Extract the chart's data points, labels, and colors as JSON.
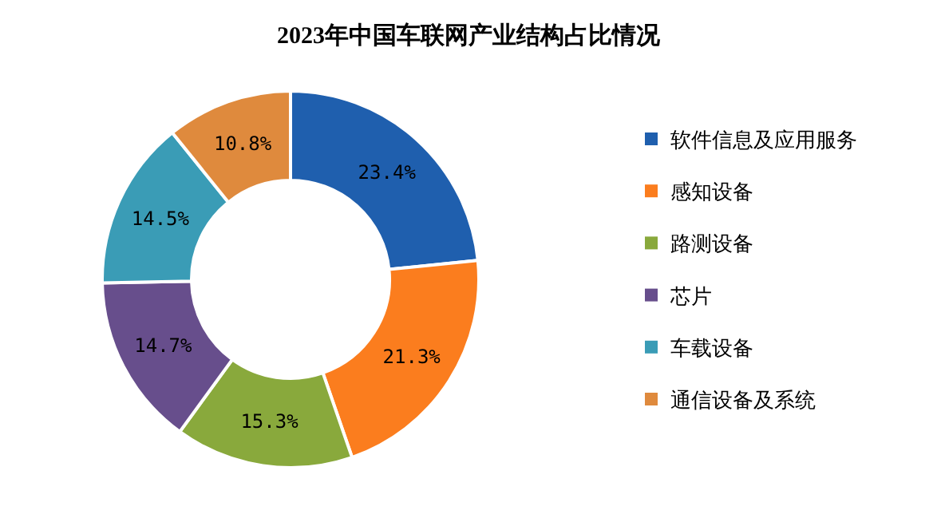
{
  "chart_data": {
    "type": "donut",
    "title": "2023年中国车联网产业结构占比情况",
    "categories": [
      "软件信息及应用服务",
      "感知设备",
      "路测设备",
      "芯片",
      "车载设备",
      "通信设备及系统"
    ],
    "values": [
      23.4,
      21.3,
      15.3,
      14.7,
      14.5,
      10.8
    ],
    "value_labels": [
      "23.4%",
      "21.3%",
      "15.3%",
      "14.7%",
      "14.5%",
      "10.8%"
    ],
    "colors": [
      "#1f5fae",
      "#fb7d1e",
      "#89a93c",
      "#674e8c",
      "#3a9cb6",
      "#df8a3d"
    ],
    "legend": "right"
  }
}
